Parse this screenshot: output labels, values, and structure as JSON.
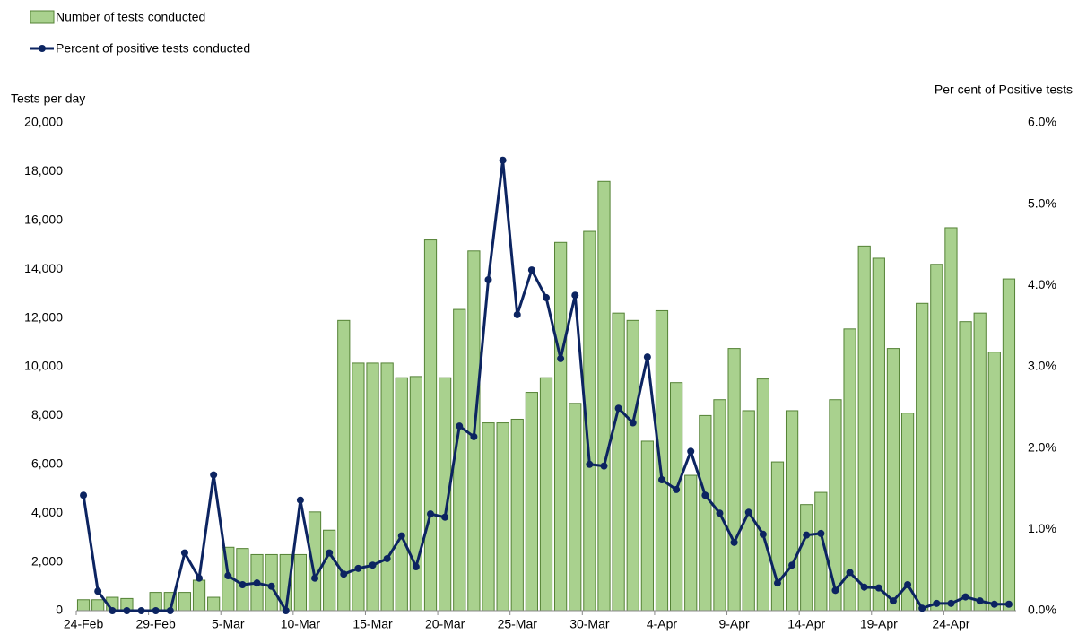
{
  "chart_data": {
    "type": "bar_line",
    "y_label": "Tests per day",
    "y2_label": "Per cent of Positive tests",
    "categories": [
      "24-Feb",
      null,
      null,
      null,
      null,
      "29-Feb",
      null,
      null,
      null,
      null,
      "5-Mar",
      null,
      null,
      null,
      null,
      "10-Mar",
      null,
      null,
      null,
      null,
      "15-Mar",
      null,
      null,
      null,
      null,
      "20-Mar",
      null,
      null,
      null,
      null,
      "25-Mar",
      null,
      null,
      null,
      null,
      "30-Mar",
      null,
      null,
      null,
      null,
      "4-Apr",
      null,
      null,
      null,
      null,
      "9-Apr",
      null,
      null,
      null,
      null,
      "14-Apr",
      null,
      null,
      null,
      null,
      "19-Apr",
      null,
      null,
      null,
      null,
      "24-Apr",
      null,
      null,
      null,
      null
    ],
    "series": [
      {
        "name": "Number of tests conducted",
        "type": "bar",
        "color": "#a9d18e",
        "edge": "#548235",
        "values": [
          450,
          450,
          550,
          500,
          0,
          750,
          750,
          750,
          1250,
          550,
          2600,
          2550,
          2300,
          2300,
          2300,
          2300,
          4050,
          3300,
          11900,
          10150,
          10150,
          10150,
          9550,
          9600,
          15200,
          9550,
          12350,
          14750,
          7700,
          7700,
          7850,
          8950,
          9550,
          15100,
          8500,
          15550,
          17600,
          12200,
          11900,
          6950,
          12300,
          9350,
          5550,
          8000,
          8650,
          10750,
          8200,
          9500,
          6100,
          8200,
          4350,
          4850,
          8650,
          11550,
          14950,
          14450,
          10750,
          8100,
          12600,
          14200,
          15700,
          11850,
          12200,
          10600,
          13600
        ]
      },
      {
        "name": "Percent of positive tests conducted",
        "type": "line",
        "axis": "y2",
        "color": "#0c2461",
        "values": [
          1.42,
          0.24,
          0,
          0,
          0,
          0,
          0,
          0.71,
          0.4,
          1.67,
          0.43,
          0.32,
          0.34,
          0.3,
          0,
          1.36,
          0.4,
          0.71,
          0.45,
          0.52,
          0.56,
          0.64,
          0.92,
          0.54,
          1.19,
          1.15,
          2.27,
          2.14,
          4.07,
          5.54,
          3.64,
          4.19,
          3.85,
          3.1,
          3.88,
          1.8,
          1.78,
          2.49,
          2.31,
          3.12,
          1.61,
          1.49,
          1.96,
          1.42,
          1.2,
          0.84,
          1.21,
          0.94,
          0.34,
          0.56,
          0.93,
          0.95,
          0.25,
          0.47,
          0.29,
          0.28,
          0.12,
          0.32,
          0.03,
          0.09,
          0.09,
          0.17,
          0.12,
          0.08,
          0.08
        ]
      }
    ],
    "ylim": [
      0,
      20000
    ],
    "yticks": [
      0,
      {
        "value": 2000,
        "label": "2,000"
      },
      {
        "value": 4000,
        "label": "4,000"
      },
      {
        "value": 6000,
        "label": "6,000"
      },
      {
        "value": 8000,
        "label": "8,000"
      },
      {
        "value": 10000,
        "label": "10,000"
      },
      {
        "value": 12000,
        "label": "12,000"
      },
      {
        "value": 14000,
        "label": "14,000"
      },
      {
        "value": 16000,
        "label": "16,000"
      },
      {
        "value": 18000,
        "label": "18,000"
      },
      {
        "value": 20000,
        "label": "20,000"
      }
    ],
    "y2lim": [
      0,
      6
    ],
    "y2ticks": [
      {
        "value": 0,
        "label": "0.0%"
      },
      {
        "value": 1,
        "label": "1.0%"
      },
      {
        "value": 2,
        "label": "2.0%"
      },
      {
        "value": 3,
        "label": "3.0%"
      },
      {
        "value": 4,
        "label": "4.0%"
      },
      {
        "value": 5,
        "label": "5.0%"
      },
      {
        "value": 6,
        "label": "6.0%"
      }
    ]
  }
}
